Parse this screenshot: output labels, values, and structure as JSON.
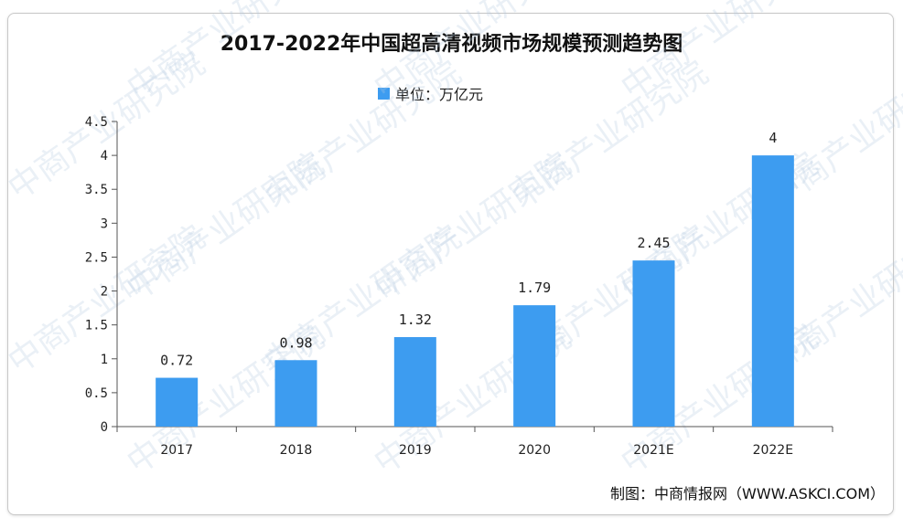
{
  "chart_data": {
    "type": "bar",
    "title": "2017-2022年中国超高清视频市场规模预测趋势图",
    "categories": [
      "2017",
      "2018",
      "2019",
      "2020",
      "2021E",
      "2022E"
    ],
    "series": [
      {
        "name": "单位：万亿元",
        "values": [
          0.72,
          0.98,
          1.32,
          1.79,
          2.45,
          4
        ]
      }
    ],
    "data_labels": [
      "0.72",
      "0.98",
      "1.32",
      "1.79",
      "2.45",
      "4"
    ],
    "ylim": [
      0,
      4.5
    ],
    "yticks": [
      "0",
      "0.5",
      "1",
      "1.5",
      "2",
      "2.5",
      "3",
      "3.5",
      "4",
      "4.5"
    ],
    "xlabel": "",
    "ylabel": "",
    "grid": false,
    "legend_position": "top-center",
    "bar_color": "#3d9cf0"
  },
  "source": "制图：中商情报网（WWW.ASKCI.COM）",
  "watermark": "中商产业研究院"
}
